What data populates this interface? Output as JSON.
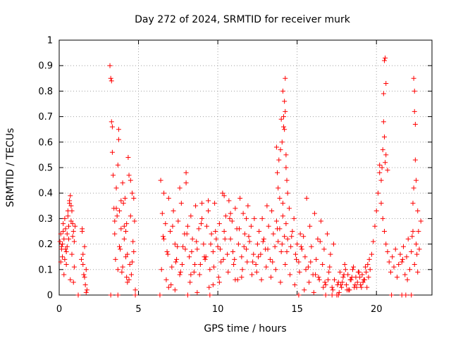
{
  "chart_data": {
    "type": "scatter",
    "title": "Day 272 of 2024, SRMTID for receiver murk",
    "xlabel": "GPS time / hours",
    "ylabel": "SRMTID / TECUs",
    "xlim": [
      0,
      23.5
    ],
    "ylim": [
      0,
      1
    ],
    "x_ticks": [
      0,
      5,
      10,
      15,
      20
    ],
    "x_tick_labels": [
      "0",
      "5",
      "10",
      "15",
      "20"
    ],
    "y_ticks": [
      0,
      0.1,
      0.2,
      0.3,
      0.4,
      0.5,
      0.6,
      0.7,
      0.8,
      0.9,
      1
    ],
    "y_tick_labels": [
      "0",
      "0.1",
      "0.2",
      "0.3",
      "0.4",
      "0.5",
      "0.6",
      "0.7",
      "0.8",
      "0.9",
      "1"
    ],
    "grid": true,
    "marker": "+",
    "series_color": "#ff0000",
    "series": [
      {
        "name": "SRMTID",
        "x": [
          0.05,
          0.1,
          0.15,
          0.2,
          0.25,
          0.3,
          0.35,
          0.4,
          0.45,
          0.5,
          0.55,
          0.6,
          0.65,
          0.7,
          0.75,
          0.8,
          0.85,
          0.9,
          0.95,
          1.0,
          0.1,
          0.2,
          0.3,
          0.45,
          0.6,
          0.75,
          0.9,
          0.15,
          0.35,
          0.55,
          0.7,
          0.85,
          0.25,
          0.5,
          0.8,
          0.95,
          0.4,
          0.65,
          1.4,
          1.45,
          1.5,
          1.55,
          1.6,
          1.65,
          1.7,
          1.75,
          1.5,
          1.6,
          1.45,
          1.7,
          3.2,
          3.25,
          3.3,
          3.3,
          3.35,
          3.35,
          3.4,
          3.45,
          3.5,
          3.55,
          3.6,
          3.65,
          3.7,
          3.75,
          3.8,
          3.85,
          3.9,
          3.95,
          4.0,
          4.05,
          4.1,
          4.15,
          4.2,
          4.25,
          4.3,
          4.35,
          4.4,
          4.45,
          4.5,
          4.55,
          4.6,
          4.65,
          4.7,
          4.75,
          4.8,
          3.6,
          3.8,
          4.0,
          4.2,
          4.4,
          4.6,
          3.5,
          3.7,
          3.9,
          4.1,
          4.3,
          4.5,
          4.7,
          3.75,
          4.25,
          6.4,
          6.5,
          6.6,
          6.7,
          6.8,
          6.9,
          7.0,
          7.1,
          7.2,
          7.3,
          7.4,
          7.5,
          7.6,
          7.7,
          7.8,
          7.9,
          8.0,
          8.1,
          8.2,
          8.3,
          8.4,
          8.5,
          8.6,
          8.7,
          8.8,
          8.9,
          9.0,
          9.1,
          9.2,
          9.3,
          9.4,
          9.5,
          9.6,
          9.7,
          9.8,
          9.9,
          10.0,
          10.1,
          10.2,
          10.3,
          10.4,
          10.5,
          10.6,
          10.7,
          10.8,
          10.9,
          11.0,
          11.1,
          11.2,
          11.3,
          11.4,
          11.5,
          11.6,
          11.7,
          11.8,
          11.9,
          12.0,
          12.1,
          12.2,
          12.3,
          6.45,
          6.75,
          7.05,
          7.35,
          7.65,
          7.95,
          8.25,
          8.55,
          8.85,
          9.15,
          9.45,
          9.75,
          10.05,
          10.35,
          10.65,
          10.95,
          11.25,
          11.55,
          11.85,
          12.15,
          6.55,
          6.85,
          7.15,
          7.45,
          7.75,
          8.05,
          8.35,
          8.65,
          8.95,
          9.25,
          9.55,
          9.85,
          10.15,
          10.45,
          10.75,
          11.05,
          11.35,
          11.65,
          11.95,
          12.25,
          6.6,
          7.3,
          8.0,
          8.7,
          9.4,
          10.1,
          10.8,
          11.5,
          6.9,
          7.6,
          8.3,
          9.0,
          9.7,
          10.4,
          11.1,
          11.8,
          12.4,
          12.5,
          12.6,
          12.7,
          12.8,
          12.9,
          13.0,
          13.1,
          13.2,
          13.3,
          13.4,
          13.5,
          13.6,
          13.7,
          13.8,
          13.9,
          14.0,
          14.1,
          14.2,
          14.3,
          14.4,
          14.5,
          14.6,
          14.7,
          14.8,
          14.9,
          15.0,
          15.1,
          15.2,
          15.3,
          12.45,
          12.75,
          13.05,
          13.35,
          13.65,
          13.95,
          14.25,
          14.55,
          14.85,
          15.15,
          12.55,
          12.85,
          13.15,
          13.45,
          13.75,
          14.05,
          14.35,
          14.65,
          14.95,
          15.25,
          13.7,
          13.75,
          13.8,
          13.85,
          13.9,
          13.95,
          14.0,
          14.05,
          14.1,
          14.15,
          14.2,
          14.25,
          14.3,
          14.35,
          14.4,
          14.2,
          14.25,
          14.3,
          14.1,
          14.15,
          15.4,
          15.5,
          15.6,
          15.7,
          15.8,
          15.9,
          16.0,
          16.1,
          16.2,
          16.3,
          16.4,
          16.5,
          16.6,
          16.7,
          16.8,
          16.9,
          17.0,
          17.1,
          17.2,
          17.3,
          15.45,
          15.75,
          16.05,
          16.35,
          16.65,
          16.95,
          17.25,
          17.55,
          15.55,
          15.85,
          16.15,
          16.45,
          16.75,
          17.05,
          17.35,
          17.5,
          17.6,
          17.7,
          17.8,
          17.9,
          18.0,
          18.1,
          18.2,
          18.3,
          18.4,
          18.5,
          18.6,
          18.7,
          18.8,
          18.9,
          19.0,
          19.1,
          19.2,
          19.3,
          19.4,
          19.5,
          17.65,
          17.85,
          18.05,
          18.25,
          18.45,
          18.65,
          18.85,
          19.05,
          19.25,
          19.45,
          17.75,
          17.95,
          18.15,
          18.35,
          18.55,
          18.75,
          18.95,
          19.15,
          19.35,
          19.55,
          19.6,
          19.7,
          19.8,
          19.9,
          20.0,
          20.1,
          20.2,
          20.3,
          20.4,
          20.5,
          20.6,
          20.7,
          20.8,
          20.9,
          21.0,
          21.1,
          21.2,
          21.3,
          21.4,
          21.5,
          20.35,
          20.4,
          20.45,
          20.5,
          20.55,
          20.6,
          20.45,
          20.5,
          20.55,
          20.2,
          20.3,
          20.6,
          20.7,
          21.6,
          21.7,
          21.8,
          21.9,
          22.0,
          22.1,
          22.2,
          22.3,
          22.4,
          22.5,
          22.6,
          22.7,
          22.8,
          21.65,
          21.95,
          22.25,
          22.55,
          22.35,
          22.4,
          22.4,
          22.45,
          22.45,
          22.5,
          22.3,
          22.35,
          22.6,
          22.65,
          1.2,
          3.25,
          3.7,
          4.8,
          6.35,
          8.1,
          9.5,
          15.1,
          16.8,
          17.2,
          17.6,
          20.95,
          21.6,
          21.85,
          22.2
        ],
        "y": [
          0.21,
          0.24,
          0.18,
          0.15,
          0.28,
          0.22,
          0.3,
          0.26,
          0.12,
          0.19,
          0.33,
          0.27,
          0.36,
          0.39,
          0.29,
          0.16,
          0.23,
          0.25,
          0.11,
          0.27,
          0.13,
          0.2,
          0.08,
          0.17,
          0.22,
          0.35,
          0.05,
          0.19,
          0.14,
          0.31,
          0.06,
          0.28,
          0.25,
          0.24,
          0.33,
          0.21,
          0.18,
          0.37,
          0.14,
          0.26,
          0.12,
          0.08,
          0.19,
          0.04,
          0.1,
          0.02,
          0.16,
          0.07,
          0.25,
          0.01,
          0.9,
          0.85,
          0.84,
          0.68,
          0.66,
          0.56,
          0.47,
          0.34,
          0.24,
          0.14,
          0.42,
          0.31,
          0.51,
          0.61,
          0.33,
          0.18,
          0.26,
          0.09,
          0.44,
          0.36,
          0.22,
          0.38,
          0.15,
          0.28,
          0.05,
          0.54,
          0.47,
          0.12,
          0.31,
          0.08,
          0.4,
          0.21,
          0.17,
          0.29,
          0.02,
          0.34,
          0.19,
          0.11,
          0.25,
          0.06,
          0.13,
          0.29,
          0.1,
          0.37,
          0.27,
          0.16,
          0.45,
          0.38,
          0.65,
          0.07,
          0.45,
          0.32,
          0.22,
          0.28,
          0.17,
          0.38,
          0.25,
          0.11,
          0.33,
          0.2,
          0.14,
          0.29,
          0.08,
          0.36,
          0.19,
          0.24,
          0.48,
          0.27,
          0.15,
          0.31,
          0.22,
          0.09,
          0.35,
          0.18,
          0.26,
          0.12,
          0.3,
          0.2,
          0.14,
          0.27,
          0.33,
          0.1,
          0.24,
          0.17,
          0.36,
          0.22,
          0.19,
          0.28,
          0.13,
          0.4,
          0.25,
          0.31,
          0.16,
          0.37,
          0.22,
          0.29,
          0.12,
          0.34,
          0.26,
          0.2,
          0.38,
          0.15,
          0.32,
          0.24,
          0.18,
          0.35,
          0.21,
          0.27,
          0.13,
          0.3,
          0.1,
          0.06,
          0.04,
          0.13,
          0.09,
          0.18,
          0.05,
          0.12,
          0.08,
          0.15,
          0.03,
          0.11,
          0.07,
          0.14,
          0.09,
          0.17,
          0.06,
          0.1,
          0.13,
          0.08,
          0.23,
          0.16,
          0.27,
          0.19,
          0.12,
          0.24,
          0.17,
          0.21,
          0.28,
          0.15,
          0.2,
          0.25,
          0.18,
          0.22,
          0.3,
          0.14,
          0.26,
          0.19,
          0.23,
          0.16,
          0.4,
          0.02,
          0.44,
          0.01,
          0.37,
          0.05,
          0.32,
          0.07,
          0.03,
          0.42,
          0.08,
          0.36,
          0.04,
          0.39,
          0.06,
          0.3,
          0.12,
          0.2,
          0.25,
          0.16,
          0.3,
          0.22,
          0.18,
          0.35,
          0.27,
          0.14,
          0.33,
          0.24,
          0.19,
          0.29,
          0.21,
          0.26,
          0.17,
          0.31,
          0.23,
          0.28,
          0.22,
          0.34,
          0.19,
          0.25,
          0.3,
          0.16,
          0.2,
          0.13,
          0.24,
          0.18,
          0.09,
          0.06,
          0.11,
          0.07,
          0.1,
          0.05,
          0.12,
          0.08,
          0.04,
          0.09,
          0.15,
          0.21,
          0.18,
          0.13,
          0.26,
          0.2,
          0.17,
          0.23,
          0.14,
          0.19,
          0.58,
          0.48,
          0.42,
          0.53,
          0.38,
          0.57,
          0.69,
          0.6,
          0.8,
          0.66,
          0.76,
          0.85,
          0.5,
          0.45,
          0.4,
          0.65,
          0.72,
          0.55,
          0.36,
          0.7,
          0.23,
          0.15,
          0.38,
          0.11,
          0.27,
          0.19,
          0.08,
          0.32,
          0.14,
          0.22,
          0.06,
          0.29,
          0.12,
          0.18,
          0.04,
          0.24,
          0.09,
          0.16,
          0.03,
          0.2,
          0.02,
          0.05,
          0.01,
          0.07,
          0.03,
          0.06,
          0.02,
          0.04,
          0.1,
          0.13,
          0.08,
          0.21,
          0.05,
          0.11,
          0.06,
          0.0,
          0.05,
          0.09,
          0.03,
          0.07,
          0.12,
          0.04,
          0.08,
          0.02,
          0.06,
          0.1,
          0.03,
          0.07,
          0.05,
          0.09,
          0.04,
          0.08,
          0.06,
          0.11,
          0.03,
          0.07,
          0.01,
          0.05,
          0.1,
          0.02,
          0.07,
          0.04,
          0.09,
          0.03,
          0.06,
          0.12,
          0.04,
          0.08,
          0.02,
          0.06,
          0.11,
          0.03,
          0.07,
          0.05,
          0.09,
          0.14,
          0.1,
          0.16,
          0.21,
          0.27,
          0.33,
          0.4,
          0.48,
          0.36,
          0.3,
          0.25,
          0.2,
          0.17,
          0.13,
          0.09,
          0.15,
          0.11,
          0.18,
          0.07,
          0.12,
          0.16,
          0.5,
          0.57,
          0.68,
          0.92,
          0.93,
          0.83,
          0.79,
          0.62,
          0.52,
          0.51,
          0.45,
          0.55,
          0.49,
          0.13,
          0.19,
          0.08,
          0.15,
          0.22,
          0.1,
          0.17,
          0.25,
          0.12,
          0.2,
          0.09,
          0.18,
          0.29,
          0.14,
          0.06,
          0.23,
          0.16,
          0.85,
          0.8,
          0.72,
          0.67,
          0.53,
          0.45,
          0.36,
          0.42,
          0.33,
          0.25,
          0.0,
          0.0,
          0.0,
          0.0,
          0.0,
          0.0,
          0.0,
          0.0,
          0.0,
          0.0,
          0.0,
          0.0,
          0.0,
          0.0,
          0.0
        ]
      }
    ]
  }
}
